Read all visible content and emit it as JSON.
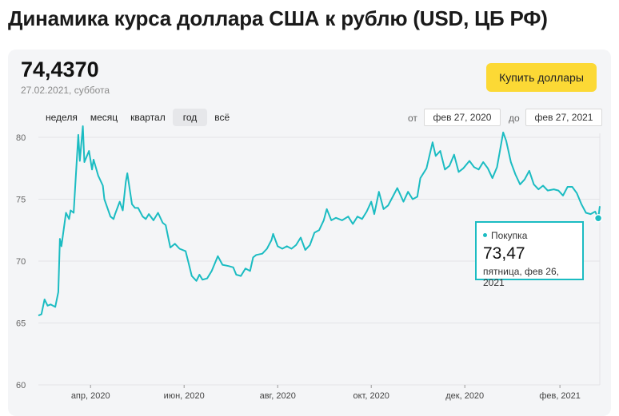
{
  "page": {
    "title": "Динамика курса доллара США к рублю (USD, ЦБ РФ)"
  },
  "rate": {
    "value": "74,4370",
    "date": "27.02.2021, суббота"
  },
  "buy_button": {
    "label": "Купить доллары"
  },
  "periods": [
    {
      "label": "неделя",
      "active": false
    },
    {
      "label": "месяц",
      "active": false
    },
    {
      "label": "квартал",
      "active": false
    },
    {
      "label": "год",
      "active": true
    },
    {
      "label": "всё",
      "active": false
    }
  ],
  "range": {
    "from_label": "от",
    "from_value": "фев 27, 2020",
    "to_label": "до",
    "to_value": "фев 27, 2021"
  },
  "tooltip": {
    "series": "Покупка",
    "value": "73,47",
    "date": "пятница, фев 26, 2021"
  },
  "colors": {
    "line": "#1bbcc2",
    "button": "#fcd935",
    "card": "#f4f5f7"
  },
  "chart_data": {
    "type": "line",
    "ylim": [
      60,
      80
    ],
    "y_ticks": [
      "60",
      "65",
      "70",
      "75",
      "80"
    ],
    "x_ticks": [
      "апр, 2020",
      "июн, 2020",
      "авг, 2020",
      "окт, 2020",
      "дек, 2020",
      "фев, 2021"
    ],
    "series": [
      {
        "name": "Покупка",
        "points": [
          [
            "2020-02-27",
            65.6
          ],
          [
            "2020-02-29",
            65.7
          ],
          [
            "2020-03-02",
            66.9
          ],
          [
            "2020-03-04",
            66.4
          ],
          [
            "2020-03-06",
            66.5
          ],
          [
            "2020-03-09",
            66.3
          ],
          [
            "2020-03-11",
            67.5
          ],
          [
            "2020-03-12",
            71.8
          ],
          [
            "2020-03-13",
            71.2
          ],
          [
            "2020-03-16",
            73.9
          ],
          [
            "2020-03-18",
            73.4
          ],
          [
            "2020-03-19",
            74.1
          ],
          [
            "2020-03-21",
            73.9
          ],
          [
            "2020-03-24",
            80.2
          ],
          [
            "2020-03-25",
            78.1
          ],
          [
            "2020-03-27",
            80.9
          ],
          [
            "2020-03-28",
            78.0
          ],
          [
            "2020-03-31",
            78.9
          ],
          [
            "2020-04-02",
            77.4
          ],
          [
            "2020-04-03",
            78.2
          ],
          [
            "2020-04-06",
            76.9
          ],
          [
            "2020-04-09",
            76.1
          ],
          [
            "2020-04-10",
            75.0
          ],
          [
            "2020-04-14",
            73.6
          ],
          [
            "2020-04-16",
            73.4
          ],
          [
            "2020-04-17",
            73.8
          ],
          [
            "2020-04-20",
            74.8
          ],
          [
            "2020-04-22",
            74.1
          ],
          [
            "2020-04-24",
            76.4
          ],
          [
            "2020-04-25",
            77.1
          ],
          [
            "2020-04-28",
            74.6
          ],
          [
            "2020-04-30",
            74.3
          ],
          [
            "2020-05-02",
            74.3
          ],
          [
            "2020-05-05",
            73.6
          ],
          [
            "2020-05-07",
            73.4
          ],
          [
            "2020-05-09",
            73.8
          ],
          [
            "2020-05-12",
            73.3
          ],
          [
            "2020-05-15",
            73.9
          ],
          [
            "2020-05-18",
            73.1
          ],
          [
            "2020-05-20",
            72.9
          ],
          [
            "2020-05-22",
            71.7
          ],
          [
            "2020-05-23",
            71.1
          ],
          [
            "2020-05-26",
            71.4
          ],
          [
            "2020-05-29",
            71.0
          ],
          [
            "2020-06-02",
            70.8
          ],
          [
            "2020-06-04",
            69.8
          ],
          [
            "2020-06-06",
            68.8
          ],
          [
            "2020-06-09",
            68.4
          ],
          [
            "2020-06-11",
            68.9
          ],
          [
            "2020-06-13",
            68.5
          ],
          [
            "2020-06-16",
            68.6
          ],
          [
            "2020-06-19",
            69.2
          ],
          [
            "2020-06-23",
            70.4
          ],
          [
            "2020-06-26",
            69.7
          ],
          [
            "2020-06-30",
            69.6
          ],
          [
            "2020-07-03",
            69.5
          ],
          [
            "2020-07-05",
            68.9
          ],
          [
            "2020-07-08",
            68.8
          ],
          [
            "2020-07-11",
            69.4
          ],
          [
            "2020-07-14",
            69.2
          ],
          [
            "2020-07-16",
            70.3
          ],
          [
            "2020-07-18",
            70.5
          ],
          [
            "2020-07-22",
            70.6
          ],
          [
            "2020-07-25",
            71.0
          ],
          [
            "2020-07-28",
            71.7
          ],
          [
            "2020-07-29",
            72.2
          ],
          [
            "2020-08-01",
            71.2
          ],
          [
            "2020-08-04",
            71.0
          ],
          [
            "2020-08-07",
            71.2
          ],
          [
            "2020-08-10",
            71.0
          ],
          [
            "2020-08-13",
            71.3
          ],
          [
            "2020-08-16",
            71.9
          ],
          [
            "2020-08-19",
            70.9
          ],
          [
            "2020-08-22",
            71.3
          ],
          [
            "2020-08-25",
            72.3
          ],
          [
            "2020-08-28",
            72.5
          ],
          [
            "2020-08-31",
            73.3
          ],
          [
            "2020-09-02",
            74.2
          ],
          [
            "2020-09-05",
            73.3
          ],
          [
            "2020-09-08",
            73.5
          ],
          [
            "2020-09-12",
            73.3
          ],
          [
            "2020-09-16",
            73.6
          ],
          [
            "2020-09-19",
            73.0
          ],
          [
            "2020-09-22",
            73.6
          ],
          [
            "2020-09-25",
            73.4
          ],
          [
            "2020-09-28",
            74.0
          ],
          [
            "2020-10-01",
            74.8
          ],
          [
            "2020-10-03",
            73.8
          ],
          [
            "2020-10-06",
            75.6
          ],
          [
            "2020-10-09",
            74.2
          ],
          [
            "2020-10-12",
            74.5
          ],
          [
            "2020-10-15",
            75.2
          ],
          [
            "2020-10-18",
            75.9
          ],
          [
            "2020-10-22",
            74.8
          ],
          [
            "2020-10-25",
            75.6
          ],
          [
            "2020-10-28",
            75.0
          ],
          [
            "2020-10-31",
            75.2
          ],
          [
            "2020-11-02",
            76.7
          ],
          [
            "2020-11-06",
            77.5
          ],
          [
            "2020-11-10",
            79.6
          ],
          [
            "2020-11-12",
            78.5
          ],
          [
            "2020-11-15",
            78.9
          ],
          [
            "2020-11-18",
            77.4
          ],
          [
            "2020-11-21",
            77.7
          ],
          [
            "2020-11-24",
            78.6
          ],
          [
            "2020-11-27",
            77.2
          ],
          [
            "2020-11-30",
            77.5
          ],
          [
            "2020-12-04",
            78.1
          ],
          [
            "2020-12-07",
            77.6
          ],
          [
            "2020-12-10",
            77.4
          ],
          [
            "2020-12-13",
            78.0
          ],
          [
            "2020-12-16",
            77.5
          ],
          [
            "2020-12-19",
            76.7
          ],
          [
            "2020-12-22",
            77.6
          ],
          [
            "2020-12-26",
            80.4
          ],
          [
            "2020-12-28",
            79.7
          ],
          [
            "2020-12-31",
            78.0
          ],
          [
            "2021-01-03",
            77.0
          ],
          [
            "2021-01-06",
            76.2
          ],
          [
            "2021-01-09",
            76.6
          ],
          [
            "2021-01-12",
            77.3
          ],
          [
            "2021-01-15",
            76.2
          ],
          [
            "2021-01-18",
            75.8
          ],
          [
            "2021-01-21",
            76.1
          ],
          [
            "2021-01-24",
            75.7
          ],
          [
            "2021-01-28",
            75.8
          ],
          [
            "2021-01-31",
            75.7
          ],
          [
            "2021-02-03",
            75.3
          ],
          [
            "2021-02-06",
            76.0
          ],
          [
            "2021-02-09",
            76.0
          ],
          [
            "2021-02-12",
            75.5
          ],
          [
            "2021-02-15",
            74.6
          ],
          [
            "2021-02-18",
            73.9
          ],
          [
            "2021-02-21",
            73.8
          ],
          [
            "2021-02-24",
            74.0
          ],
          [
            "2021-02-26",
            73.47
          ],
          [
            "2021-02-27",
            74.44
          ]
        ]
      }
    ]
  }
}
